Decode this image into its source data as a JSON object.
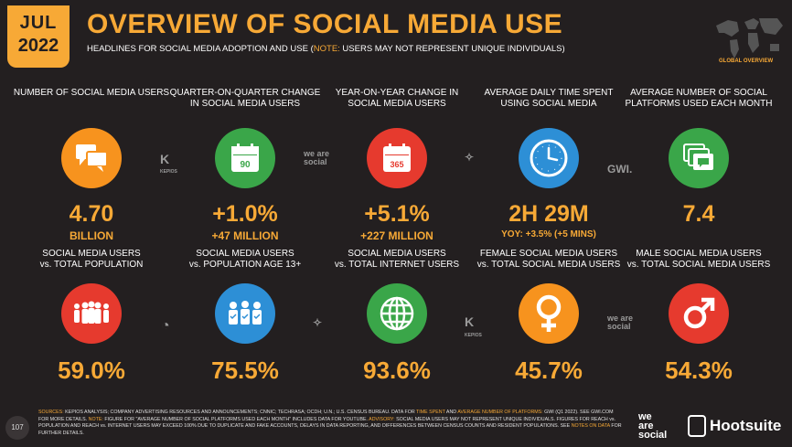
{
  "header": {
    "month": "JUL",
    "year": "2022",
    "title": "OVERVIEW OF SOCIAL MEDIA USE",
    "subtitle_prefix": "HEADLINES FOR SOCIAL MEDIA ADOPTION AND USE (",
    "subtitle_note": "NOTE:",
    "subtitle_suffix": " USERS MAY NOT REPRESENT UNIQUE INDIVIDUALS)",
    "global_label": "GLOBAL OVERVIEW"
  },
  "row1": [
    {
      "label": "NUMBER OF SOCIAL MEDIA USERS",
      "value": "4.70",
      "sub": "BILLION",
      "icon": "chat-bubbles-icon",
      "color": "#f7931e"
    },
    {
      "label": "QUARTER-ON-QUARTER CHANGE IN SOCIAL MEDIA USERS",
      "value": "+1.0%",
      "sub": "+47 MILLION",
      "icon": "calendar-90-icon",
      "icon_text": "90",
      "color": "#3aa649"
    },
    {
      "label": "YEAR-ON-YEAR CHANGE IN SOCIAL MEDIA USERS",
      "value": "+5.1%",
      "sub": "+227 MILLION",
      "icon": "calendar-365-icon",
      "icon_text": "365",
      "color": "#e63a2e"
    },
    {
      "label": "AVERAGE DAILY TIME SPENT USING SOCIAL MEDIA",
      "value": "2H 29M",
      "sub": "YOY: +3.5% (+5 MINS)",
      "icon": "clock-icon",
      "color": "#2d8fd6"
    },
    {
      "label": "AVERAGE NUMBER OF SOCIAL PLATFORMS USED EACH MONTH",
      "value": "7.4",
      "sub": "",
      "icon": "stacked-windows-icon",
      "color": "#3aa649"
    }
  ],
  "row2": [
    {
      "label1": "SOCIAL MEDIA USERS",
      "label2": "vs. TOTAL POPULATION",
      "value": "59.0%",
      "icon": "people-group-icon",
      "color": "#e63a2e"
    },
    {
      "label1": "SOCIAL MEDIA USERS",
      "label2": "vs. POPULATION AGE 13+",
      "value": "75.5%",
      "icon": "people-check-icon",
      "color": "#2d8fd6"
    },
    {
      "label1": "SOCIAL MEDIA USERS",
      "label2": "vs. TOTAL INTERNET USERS",
      "value": "93.6%",
      "icon": "globe-icon",
      "color": "#3aa649"
    },
    {
      "label1": "FEMALE SOCIAL MEDIA USERS",
      "label2": "vs. TOTAL SOCIAL MEDIA USERS",
      "value": "45.7%",
      "icon": "female-symbol-icon",
      "color": "#f7931e"
    },
    {
      "label1": "MALE SOCIAL MEDIA USERS",
      "label2": "vs. TOTAL SOCIAL MEDIA USERS",
      "value": "54.3%",
      "icon": "male-symbol-icon",
      "color": "#e63a2e"
    }
  ],
  "sources": {
    "kepios": "KEPIOS",
    "wearesocial": "we are social",
    "gwi": "GWI."
  },
  "footer": {
    "sources_label": "SOURCES:",
    "text1": " KEPIOS ANALYSIS; COMPANY ADVERTISING RESOURCES AND ANNOUNCEMENTS; CNNIC; TECHRASA; OCDH; U.N.; U.S. CENSUS BUREAU. DATA FOR ",
    "time_spent": "TIME SPENT",
    "and": " AND ",
    "avg_platforms": "AVERAGE NUMBER OF PLATFORMS:",
    "text2": " GWI (Q1 2022). SEE GWI.COM FOR MORE DETAILS. ",
    "note_label": "NOTE:",
    "text3": " FIGURE FOR \"AVERAGE NUMBER OF SOCIAL PLATFORMS USED EACH MONTH\" INCLUDES DATA FOR YOUTUBE. ",
    "advisory_label": "ADVISORY:",
    "text4": " SOCIAL MEDIA USERS MAY NOT REPRESENT UNIQUE INDIVIDUALS. FIGURES FOR REACH vs. POPULATION AND REACH vs. INTERNET USERS MAY EXCEED 100% DUE TO DUPLICATE AND FAKE ACCOUNTS, DELAYS IN DATA REPORTING, AND DIFFERENCES BETWEEN CENSUS COUNTS AND RESIDENT POPULATIONS. SEE ",
    "notes_on_data": "NOTES ON DATA",
    "text5": " FOR FURTHER DETAILS."
  },
  "page_number": "107",
  "brand": {
    "wearesocial_1": "we",
    "wearesocial_2": "are",
    "wearesocial_3": "social",
    "hootsuite": "Hootsuite"
  }
}
